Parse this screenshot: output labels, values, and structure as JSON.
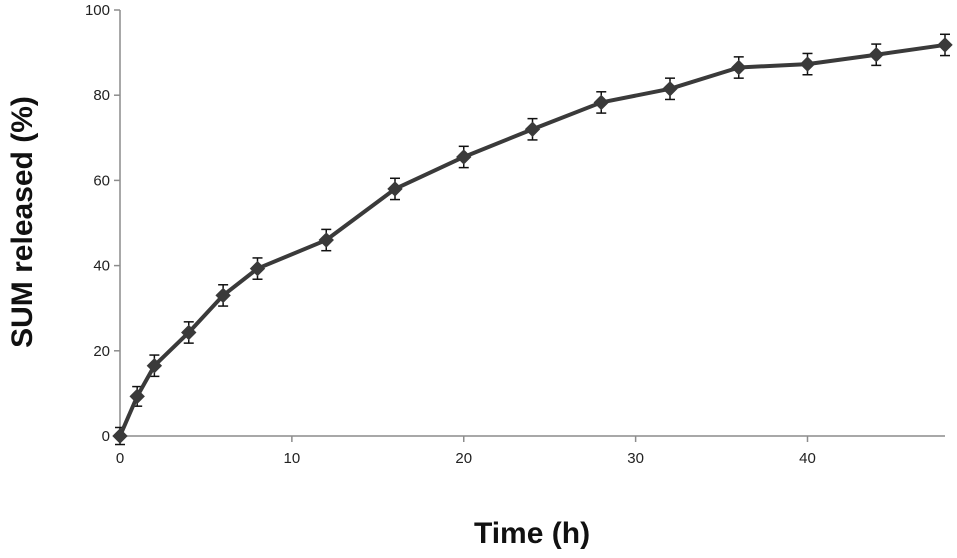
{
  "chart_data": {
    "type": "line",
    "xlabel": "Time (h)",
    "ylabel": "SUM released (%)",
    "xlim": [
      0,
      48
    ],
    "ylim": [
      0,
      100
    ],
    "xticks": [
      0,
      10,
      20,
      30,
      40
    ],
    "yticks": [
      0,
      20,
      40,
      60,
      80,
      100
    ],
    "grid": false,
    "legend": "none",
    "marker": "diamond",
    "line_color": "#3a3a3a",
    "series": [
      {
        "x": [
          0,
          1,
          2,
          4,
          6,
          8,
          12,
          16,
          20,
          24,
          28,
          32,
          36,
          40,
          44,
          48
        ],
        "y": [
          0,
          9.3,
          16.5,
          24.3,
          33,
          39.3,
          46,
          58,
          65.5,
          72,
          78.3,
          81.5,
          86.5,
          87.3,
          89.5,
          91.8
        ],
        "err": [
          2,
          2.3,
          2.5,
          2.5,
          2.5,
          2.5,
          2.5,
          2.5,
          2.5,
          2.5,
          2.5,
          2.5,
          2.5,
          2.5,
          2.5,
          2.5
        ]
      }
    ]
  }
}
